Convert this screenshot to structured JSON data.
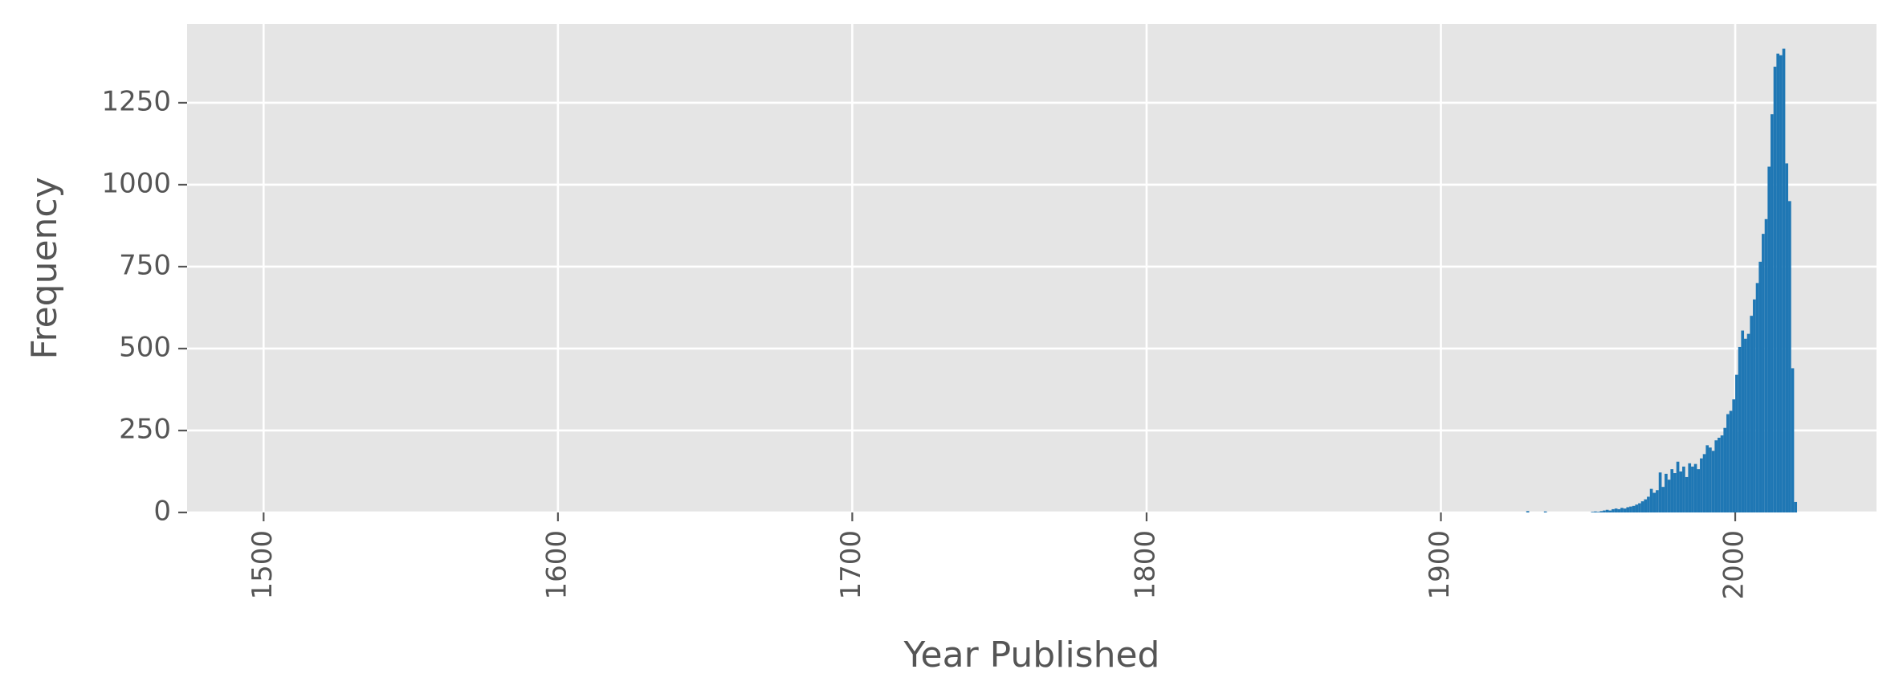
{
  "chart_data": {
    "type": "bar",
    "title": "",
    "xlabel": "Year Published",
    "ylabel": "Frequency",
    "xlim": [
      1474,
      2048
    ],
    "ylim": [
      0,
      1490
    ],
    "x_ticks": [
      1500,
      1600,
      1700,
      1800,
      1900,
      2000
    ],
    "y_ticks": [
      0,
      250,
      500,
      750,
      1000,
      1250
    ],
    "grid": true,
    "legend": "none",
    "bar_color": "#1f77b4",
    "background_color": "#e5e5e5",
    "bin_width": 1,
    "bins": [
      {
        "x": 1929,
        "y": 4
      },
      {
        "x": 1935,
        "y": 3
      },
      {
        "x": 1951,
        "y": 2
      },
      {
        "x": 1952,
        "y": 3
      },
      {
        "x": 1953,
        "y": 2
      },
      {
        "x": 1954,
        "y": 4
      },
      {
        "x": 1955,
        "y": 6
      },
      {
        "x": 1956,
        "y": 8
      },
      {
        "x": 1957,
        "y": 6
      },
      {
        "x": 1958,
        "y": 10
      },
      {
        "x": 1959,
        "y": 12
      },
      {
        "x": 1960,
        "y": 10
      },
      {
        "x": 1961,
        "y": 14
      },
      {
        "x": 1962,
        "y": 12
      },
      {
        "x": 1963,
        "y": 16
      },
      {
        "x": 1964,
        "y": 18
      },
      {
        "x": 1965,
        "y": 20
      },
      {
        "x": 1966,
        "y": 24
      },
      {
        "x": 1967,
        "y": 28
      },
      {
        "x": 1968,
        "y": 34
      },
      {
        "x": 1969,
        "y": 40
      },
      {
        "x": 1970,
        "y": 48
      },
      {
        "x": 1971,
        "y": 72
      },
      {
        "x": 1972,
        "y": 60
      },
      {
        "x": 1973,
        "y": 68
      },
      {
        "x": 1974,
        "y": 122
      },
      {
        "x": 1975,
        "y": 78
      },
      {
        "x": 1976,
        "y": 118
      },
      {
        "x": 1977,
        "y": 100
      },
      {
        "x": 1978,
        "y": 132
      },
      {
        "x": 1979,
        "y": 120
      },
      {
        "x": 1980,
        "y": 155
      },
      {
        "x": 1981,
        "y": 125
      },
      {
        "x": 1982,
        "y": 140
      },
      {
        "x": 1983,
        "y": 108
      },
      {
        "x": 1984,
        "y": 150
      },
      {
        "x": 1985,
        "y": 140
      },
      {
        "x": 1986,
        "y": 148
      },
      {
        "x": 1987,
        "y": 132
      },
      {
        "x": 1988,
        "y": 165
      },
      {
        "x": 1989,
        "y": 178
      },
      {
        "x": 1990,
        "y": 205
      },
      {
        "x": 1991,
        "y": 198
      },
      {
        "x": 1992,
        "y": 188
      },
      {
        "x": 1993,
        "y": 220
      },
      {
        "x": 1994,
        "y": 228
      },
      {
        "x": 1995,
        "y": 235
      },
      {
        "x": 1996,
        "y": 258
      },
      {
        "x": 1997,
        "y": 300
      },
      {
        "x": 1998,
        "y": 310
      },
      {
        "x": 1999,
        "y": 345
      },
      {
        "x": 2000,
        "y": 420
      },
      {
        "x": 2001,
        "y": 505
      },
      {
        "x": 2002,
        "y": 555
      },
      {
        "x": 2003,
        "y": 530
      },
      {
        "x": 2004,
        "y": 545
      },
      {
        "x": 2005,
        "y": 600
      },
      {
        "x": 2006,
        "y": 650
      },
      {
        "x": 2007,
        "y": 700
      },
      {
        "x": 2008,
        "y": 765
      },
      {
        "x": 2009,
        "y": 850
      },
      {
        "x": 2010,
        "y": 895
      },
      {
        "x": 2011,
        "y": 1055
      },
      {
        "x": 2012,
        "y": 1215
      },
      {
        "x": 2013,
        "y": 1360
      },
      {
        "x": 2014,
        "y": 1400
      },
      {
        "x": 2015,
        "y": 1395
      },
      {
        "x": 2016,
        "y": 1415
      },
      {
        "x": 2017,
        "y": 1065
      },
      {
        "x": 2018,
        "y": 950
      },
      {
        "x": 2019,
        "y": 440
      },
      {
        "x": 2020,
        "y": 32
      }
    ]
  }
}
